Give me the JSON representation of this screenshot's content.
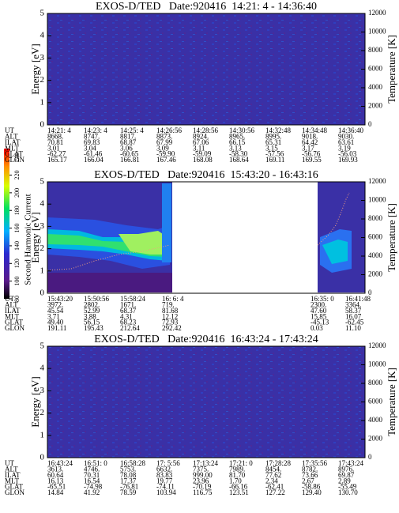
{
  "colorbar": {
    "label": "Second Harmonic Current",
    "clim": [
      80,
      250
    ],
    "ticks": [
      80,
      100,
      120,
      140,
      160,
      180,
      200,
      220,
      240
    ]
  },
  "panels": [
    {
      "title": "EXOS-D/TED   Date:920416  14:21: 4 - 14:36:40",
      "y_label": "Energy [eV]",
      "y2_label": "Temperature [K]",
      "ylim": [
        0,
        5
      ],
      "yticks": [
        0,
        1,
        2,
        3,
        4,
        5
      ],
      "y2lim": [
        0,
        12000
      ],
      "y2ticks": [
        0,
        2000,
        4000,
        6000,
        8000,
        10000,
        12000
      ],
      "table": {
        "row_labels": [
          "UT",
          "ALT",
          "ILAT",
          "MLT",
          "GLAT",
          "GLON"
        ],
        "rows": [
          [
            "14:21: 4",
            "14:23: 4",
            "14:25: 4",
            "14:26:56",
            "14:28:56",
            "14:30:56",
            "14:32:48",
            "14:34:48",
            "14:36:40"
          ],
          [
            "8668.",
            "8747.",
            "8817.",
            "8873.",
            "8924.",
            "8965.",
            "8995.",
            "9018.",
            "9030."
          ],
          [
            "70.81",
            "69.83",
            "68.87",
            "67.99",
            "67.06",
            "66.15",
            "65.31",
            "64.42",
            "63.61"
          ],
          [
            "3.01",
            "3.04",
            "3.06",
            "3.09",
            "3.11",
            "3.13",
            "3.15",
            "3.17",
            "3.19"
          ],
          [
            "-62.27",
            "-61.46",
            "-60.65",
            "-59.90",
            "-59.09",
            "-58.30",
            "-57.56",
            "-56.76",
            "-56.03"
          ],
          [
            "165.17",
            "166.04",
            "166.81",
            "167.46",
            "168.08",
            "168.64",
            "169.11",
            "169.55",
            "169.93"
          ]
        ]
      }
    },
    {
      "title": "EXOS-D/TED   Date:920416  15:43:20 - 16:43:16",
      "y_label": "Energy [eV]",
      "y2_label": "Temperature [K]",
      "ylim": [
        0,
        5
      ],
      "yticks": [
        0,
        1,
        2,
        3,
        4,
        5
      ],
      "y2lim": [
        0,
        12000
      ],
      "y2ticks": [
        0,
        2000,
        4000,
        6000,
        8000,
        10000,
        12000
      ],
      "table": {
        "row_labels": [
          "UT",
          "ALT",
          "ILAT",
          "MLT",
          "GLAT",
          "GLON"
        ],
        "rows": [
          [
            "15:43:20",
            "15:50:56",
            "15:58:24",
            "16: 6: 4",
            "16:35: 0",
            "16:41:48"
          ],
          [
            "3972.",
            "2802.",
            "1671.",
            "719.",
            "2300.",
            "3364."
          ],
          [
            "45.54",
            "52.99",
            "68.37",
            "81.68",
            "47.60",
            "58.37"
          ],
          [
            "3.71",
            "3.88",
            "4.31",
            "12.12",
            "15.85",
            "16.07"
          ],
          [
            "49.40",
            "56.15",
            "68.23",
            "72.93",
            "-45.13",
            "-62.45"
          ],
          [
            "191.11",
            "195.43",
            "212.64",
            "292.42",
            "0.03",
            "11.10"
          ]
        ]
      }
    },
    {
      "title": "EXOS-D/TED   Date:920416  16:43:24 - 17:43:24",
      "y_label": "Energy [eV]",
      "y2_label": "Temperature [K]",
      "ylim": [
        0,
        5
      ],
      "yticks": [
        0,
        1,
        2,
        3,
        4,
        5
      ],
      "y2lim": [
        0,
        12000
      ],
      "y2ticks": [
        0,
        2000,
        4000,
        6000,
        8000,
        10000,
        12000
      ],
      "table": {
        "row_labels": [
          "UT",
          "ALT",
          "ILAT",
          "MLT",
          "GLAT",
          "GLON"
        ],
        "rows": [
          [
            "16:43:24",
            "16:51: 0",
            "16:58:28",
            "17: 5:56",
            "17:13:24",
            "17:21: 0",
            "17:28:28",
            "17:35:56",
            "17:43:24"
          ],
          [
            "3613.",
            "4746.",
            "5753.",
            "6632.",
            "7375.",
            "7989.",
            "8454.",
            "8782.",
            "8976."
          ],
          [
            "60.64",
            "70.31",
            "78.08",
            "83.83",
            "999.00",
            "81.70",
            "77.62",
            "73.66",
            "69.87"
          ],
          [
            "16.13",
            "16.54",
            "17.37",
            "19.77",
            "23.96",
            "1.70",
            "2.34",
            "2.67",
            "2.89"
          ],
          [
            "-65.51",
            "-74.98",
            "-76.81",
            "-74.11",
            "-70.19",
            "-66.16",
            "-62.41",
            "-58.86",
            "-55.49"
          ],
          [
            "14.84",
            "41.92",
            "78.59",
            "103.94",
            "116.75",
            "123.51",
            "127.22",
            "129.40",
            "130.70"
          ]
        ]
      }
    }
  ]
}
